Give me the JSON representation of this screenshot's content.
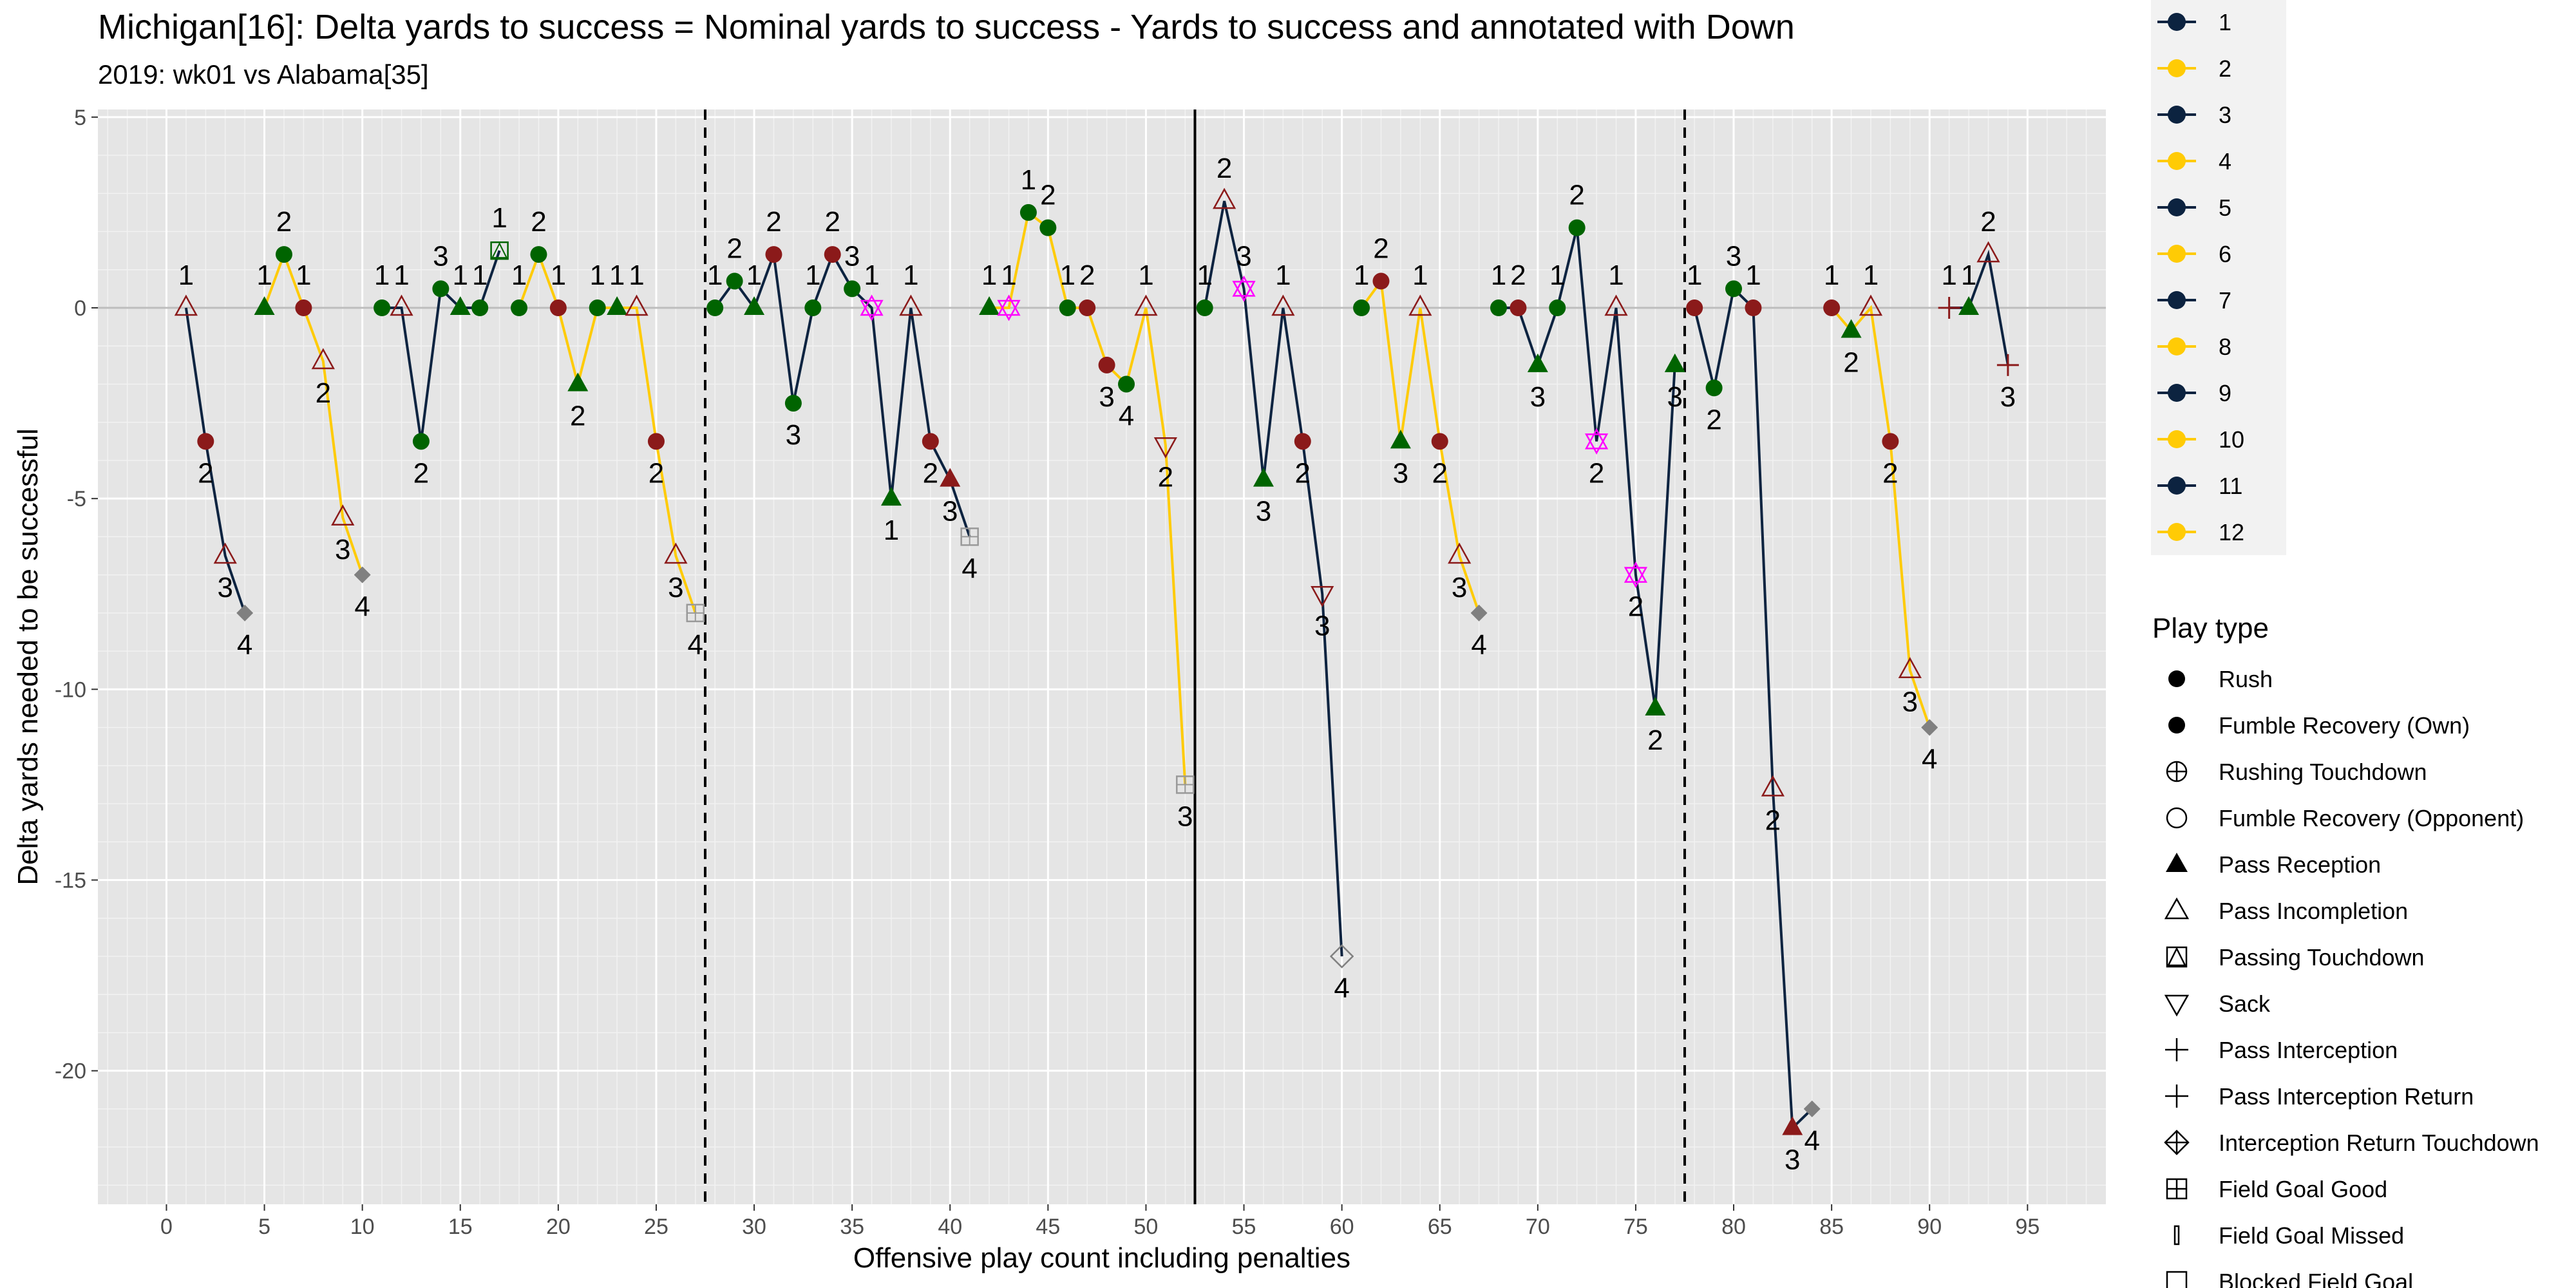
{
  "chart_data": {
    "type": "line",
    "title": "Michigan[16]: Delta yards to success = Nominal yards to success - Yards to success and annotated with Down",
    "subtitle": "2019: wk01 vs Alabama[35]",
    "xlabel": "Offensive play count including penalties",
    "ylabel": "Delta yards needed to be successful",
    "xlim": [
      -3.5,
      99
    ],
    "ylim": [
      -23.5,
      5.2
    ],
    "xticks": [
      0,
      5,
      10,
      15,
      20,
      25,
      30,
      35,
      40,
      45,
      50,
      55,
      60,
      65,
      70,
      75,
      80,
      85,
      90,
      95
    ],
    "yticks": [
      5,
      0,
      -5,
      -10,
      -15,
      -20
    ],
    "vlines_dashed": [
      27.5,
      77.5
    ],
    "vlines_solid": [
      52.5
    ],
    "grid": true,
    "colors": {
      "drive_odd": "#0c2340",
      "drive_even": "#ffcb05",
      "rush": "#006400",
      "fumble_own": "#8b1a1a",
      "pass": "#8b1a1a",
      "sack": "#8b1a1a",
      "penalty": "#ff00ff",
      "turnover": "#808080"
    },
    "legend_drive_title": "",
    "legend_drive": [
      "1",
      "2",
      "3",
      "4",
      "5",
      "6",
      "7",
      "8",
      "9",
      "10",
      "11",
      "12"
    ],
    "legend_playtype_title": "Play type",
    "legend_playtype": [
      "Rush",
      "Fumble Recovery (Own)",
      "Rushing Touchdown",
      "Fumble Recovery (Opponent)",
      "Pass Reception",
      "Pass Incompletion",
      "Passing Touchdown",
      "Sack",
      "Pass Interception",
      "Pass Interception Return",
      "Interception Return Touchdown",
      "Field Goal Good",
      "Field Goal Missed",
      "Blocked Field Goal"
    ],
    "drives": [
      {
        "drive": 1,
        "points": [
          {
            "x": 1,
            "y": 0,
            "down": "1",
            "shape": "tri_open",
            "color": "#8b1a1a",
            "label": "above"
          },
          {
            "x": 2,
            "y": -3.5,
            "down": "2",
            "shape": "circle",
            "color": "#8b1a1a",
            "label": "below"
          },
          {
            "x": 3,
            "y": -6.5,
            "down": "3",
            "shape": "tri_open",
            "color": "#8b1a1a",
            "label": "below"
          },
          {
            "x": 4,
            "y": -8,
            "down": "4",
            "shape": "diamond",
            "color": "#808080",
            "label": "below"
          }
        ]
      },
      {
        "drive": 2,
        "points": [
          {
            "x": 5,
            "y": 0,
            "down": "1",
            "shape": "tri",
            "color": "#006400",
            "label": "above"
          },
          {
            "x": 6,
            "y": 1.4,
            "down": "2",
            "shape": "circle",
            "color": "#006400",
            "label": "above"
          },
          {
            "x": 7,
            "y": 0,
            "down": "1",
            "shape": "circle",
            "color": "#8b1a1a",
            "label": "above"
          },
          {
            "x": 8,
            "y": -1.4,
            "down": "2",
            "shape": "tri_open",
            "color": "#8b1a1a",
            "label": "below"
          },
          {
            "x": 9,
            "y": -5.5,
            "down": "3",
            "shape": "tri_open",
            "color": "#8b1a1a",
            "label": "below"
          },
          {
            "x": 10,
            "y": -7,
            "down": "4",
            "shape": "diamond",
            "color": "#808080",
            "label": "below"
          }
        ]
      },
      {
        "drive": 3,
        "points": [
          {
            "x": 11,
            "y": 0,
            "down": "1",
            "shape": "circle",
            "color": "#006400",
            "label": "above"
          },
          {
            "x": 12,
            "y": 0,
            "down": "1",
            "shape": "tri_open",
            "color": "#8b1a1a",
            "label": "above"
          },
          {
            "x": 13,
            "y": -3.5,
            "down": "2",
            "shape": "circle",
            "color": "#006400",
            "label": "below"
          },
          {
            "x": 14,
            "y": 0.5,
            "down": "3",
            "shape": "circle",
            "color": "#006400",
            "label": "above"
          },
          {
            "x": 15,
            "y": 0,
            "down": "1",
            "shape": "tri",
            "color": "#006400",
            "label": "above"
          },
          {
            "x": 16,
            "y": 0,
            "down": "1",
            "shape": "circle",
            "color": "#006400",
            "label": "above"
          },
          {
            "x": 17,
            "y": 1.5,
            "down": "1",
            "shape": "sq_open",
            "color": "#006400",
            "label": "above"
          }
        ]
      },
      {
        "drive": 4,
        "points": [
          {
            "x": 18,
            "y": 0,
            "down": "1",
            "shape": "circle",
            "color": "#006400",
            "label": "above"
          },
          {
            "x": 19,
            "y": 1.4,
            "down": "2",
            "shape": "circle",
            "color": "#006400",
            "label": "above"
          },
          {
            "x": 20,
            "y": 0,
            "down": "1",
            "shape": "circle",
            "color": "#8b1a1a",
            "label": "above"
          },
          {
            "x": 21,
            "y": -2,
            "down": "2",
            "shape": "tri",
            "color": "#006400",
            "label": "below"
          },
          {
            "x": 22,
            "y": 0,
            "down": "1",
            "shape": "circle",
            "color": "#006400",
            "label": "above"
          },
          {
            "x": 23,
            "y": 0,
            "down": "1",
            "shape": "tri",
            "color": "#006400",
            "label": "above"
          },
          {
            "x": 24,
            "y": 0,
            "down": "1",
            "shape": "tri_open",
            "color": "#8b1a1a",
            "label": "above"
          },
          {
            "x": 25,
            "y": -3.5,
            "down": "2",
            "shape": "circle",
            "color": "#8b1a1a",
            "label": "below"
          },
          {
            "x": 26,
            "y": -6.5,
            "down": "3",
            "shape": "tri_open",
            "color": "#8b1a1a",
            "label": "below"
          },
          {
            "x": 27,
            "y": -8,
            "down": "4",
            "shape": "fg",
            "color": "#999999",
            "label": "below"
          }
        ]
      },
      {
        "drive": 5,
        "points": [
          {
            "x": 28,
            "y": 0,
            "down": "1",
            "shape": "circle",
            "color": "#006400",
            "label": "above"
          },
          {
            "x": 29,
            "y": 0.7,
            "down": "2",
            "shape": "circle",
            "color": "#006400",
            "label": "above"
          },
          {
            "x": 30,
            "y": 0,
            "down": "1",
            "shape": "tri",
            "color": "#006400",
            "label": "above"
          },
          {
            "x": 31,
            "y": 1.4,
            "down": "2",
            "shape": "circle",
            "color": "#8b1a1a",
            "label": "above"
          },
          {
            "x": 32,
            "y": -2.5,
            "down": "3",
            "shape": "circle",
            "color": "#006400",
            "label": "below"
          },
          {
            "x": 33,
            "y": 0,
            "down": "1",
            "shape": "circle",
            "color": "#006400",
            "label": "above"
          },
          {
            "x": 34,
            "y": 1.4,
            "down": "2",
            "shape": "circle",
            "color": "#8b1a1a",
            "label": "above"
          },
          {
            "x": 35,
            "y": 0.5,
            "down": "3",
            "shape": "circle",
            "color": "#006400",
            "label": "above"
          },
          {
            "x": 36,
            "y": 0,
            "down": "1",
            "shape": "star",
            "color": "#ff00ff",
            "label": "above"
          },
          {
            "x": 37,
            "y": -5,
            "down": "1",
            "shape": "tri",
            "color": "#006400",
            "label": "below"
          },
          {
            "x": 38,
            "y": 0,
            "down": "1",
            "shape": "tri_open",
            "color": "#8b1a1a",
            "label": "above"
          },
          {
            "x": 39,
            "y": -3.5,
            "down": "2",
            "shape": "circle",
            "color": "#8b1a1a",
            "label": "below"
          },
          {
            "x": 40,
            "y": -4.5,
            "down": "3",
            "shape": "tri",
            "color": "#8b1a1a",
            "label": "below"
          },
          {
            "x": 41,
            "y": -6,
            "down": "4",
            "shape": "fg",
            "color": "#999999",
            "label": "below"
          }
        ]
      },
      {
        "drive": 6,
        "points": [
          {
            "x": 42,
            "y": 0,
            "down": "1",
            "shape": "tri",
            "color": "#006400",
            "label": "above"
          },
          {
            "x": 43,
            "y": 0,
            "down": "1",
            "shape": "star",
            "color": "#ff00ff",
            "label": "above"
          },
          {
            "x": 44,
            "y": 2.5,
            "down": "1",
            "shape": "circle",
            "color": "#006400",
            "label": "above"
          },
          {
            "x": 45,
            "y": 2.1,
            "down": "2",
            "shape": "circle",
            "color": "#006400",
            "label": "above"
          },
          {
            "x": 46,
            "y": 0,
            "down": "1",
            "shape": "circle",
            "color": "#006400",
            "label": "above"
          },
          {
            "x": 47,
            "y": 0,
            "down": "2",
            "shape": "circle",
            "color": "#8b1a1a",
            "label": "above"
          },
          {
            "x": 48,
            "y": -1.5,
            "down": "3",
            "shape": "circle",
            "color": "#8b1a1a",
            "label": "below"
          },
          {
            "x": 49,
            "y": -2,
            "down": "4",
            "shape": "circle",
            "color": "#006400",
            "label": "below"
          },
          {
            "x": 50,
            "y": 0,
            "down": "1",
            "shape": "tri_open",
            "color": "#8b1a1a",
            "label": "above"
          },
          {
            "x": 51,
            "y": -3.6,
            "down": "2",
            "shape": "tri_down_open",
            "color": "#8b1a1a",
            "label": "below"
          },
          {
            "x": 52,
            "y": -12.5,
            "down": "3",
            "shape": "fg",
            "color": "#999999",
            "label": "below"
          }
        ]
      },
      {
        "drive": 7,
        "points": [
          {
            "x": 53,
            "y": 0,
            "down": "1",
            "shape": "circle",
            "color": "#006400",
            "label": "above"
          },
          {
            "x": 54,
            "y": 2.8,
            "down": "2",
            "shape": "tri_open",
            "color": "#8b1a1a",
            "label": "above"
          },
          {
            "x": 55,
            "y": 0.5,
            "down": "3",
            "shape": "star",
            "color": "#ff00ff",
            "label": "above"
          },
          {
            "x": 56,
            "y": -4.5,
            "down": "3",
            "shape": "tri",
            "color": "#006400",
            "label": "below"
          },
          {
            "x": 57,
            "y": 0,
            "down": "1",
            "shape": "tri_open",
            "color": "#8b1a1a",
            "label": "above"
          },
          {
            "x": 58,
            "y": -3.5,
            "down": "2",
            "shape": "circle",
            "color": "#8b1a1a",
            "label": "below"
          },
          {
            "x": 59,
            "y": -7.5,
            "down": "3",
            "shape": "tri_down_open",
            "color": "#8b1a1a",
            "label": "below"
          },
          {
            "x": 60,
            "y": -17,
            "down": "4",
            "shape": "diamond_open",
            "color": "#808080",
            "label": "below"
          }
        ]
      },
      {
        "drive": 8,
        "points": [
          {
            "x": 61,
            "y": 0,
            "down": "1",
            "shape": "circle",
            "color": "#006400",
            "label": "above"
          },
          {
            "x": 62,
            "y": 0.7,
            "down": "2",
            "shape": "circle",
            "color": "#8b1a1a",
            "label": "above"
          },
          {
            "x": 63,
            "y": -3.5,
            "down": "3",
            "shape": "tri",
            "color": "#006400",
            "label": "below"
          },
          {
            "x": 64,
            "y": 0,
            "down": "1",
            "shape": "tri_open",
            "color": "#8b1a1a",
            "label": "above"
          },
          {
            "x": 65,
            "y": -3.5,
            "down": "2",
            "shape": "circle",
            "color": "#8b1a1a",
            "label": "below"
          },
          {
            "x": 66,
            "y": -6.5,
            "down": "3",
            "shape": "tri_open",
            "color": "#8b1a1a",
            "label": "below"
          },
          {
            "x": 67,
            "y": -8,
            "down": "4",
            "shape": "diamond",
            "color": "#808080",
            "label": "below"
          }
        ]
      },
      {
        "drive": 9,
        "points": [
          {
            "x": 68,
            "y": 0,
            "down": "1",
            "shape": "circle",
            "color": "#006400",
            "label": "above"
          },
          {
            "x": 69,
            "y": 0,
            "down": "2",
            "shape": "circle",
            "color": "#8b1a1a",
            "label": "above"
          },
          {
            "x": 70,
            "y": -1.5,
            "down": "3",
            "shape": "tri",
            "color": "#006400",
            "label": "below"
          },
          {
            "x": 71,
            "y": 0,
            "down": "1",
            "shape": "circle",
            "color": "#006400",
            "label": "above"
          },
          {
            "x": 72,
            "y": 2.1,
            "down": "2",
            "shape": "circle",
            "color": "#006400",
            "label": "above"
          },
          {
            "x": 73,
            "y": -3.5,
            "down": "2",
            "shape": "star",
            "color": "#ff00ff",
            "label": "below"
          },
          {
            "x": 74,
            "y": 0,
            "down": "1",
            "shape": "tri_open",
            "color": "#8b1a1a",
            "label": "above"
          },
          {
            "x": 75,
            "y": -7,
            "down": "2",
            "shape": "star",
            "color": "#ff00ff",
            "label": "below"
          },
          {
            "x": 76,
            "y": -10.5,
            "down": "2",
            "shape": "tri",
            "color": "#006400",
            "label": "below"
          },
          {
            "x": 77,
            "y": -1.5,
            "down": "3",
            "shape": "tri",
            "color": "#006400",
            "label": "below"
          }
        ]
      },
      {
        "drive": 11,
        "points": [
          {
            "x": 78,
            "y": 0,
            "down": "1",
            "shape": "circle",
            "color": "#8b1a1a",
            "label": "above"
          },
          {
            "x": 79,
            "y": -2.1,
            "down": "2",
            "shape": "circle",
            "color": "#006400",
            "label": "below"
          },
          {
            "x": 80,
            "y": 0.5,
            "down": "3",
            "shape": "circle",
            "color": "#006400",
            "label": "above"
          },
          {
            "x": 81,
            "y": 0,
            "down": "1",
            "shape": "circle",
            "color": "#8b1a1a",
            "label": "above"
          },
          {
            "x": 82,
            "y": -12.6,
            "down": "2",
            "shape": "tri_open",
            "color": "#8b1a1a",
            "label": "below"
          },
          {
            "x": 83,
            "y": -21.5,
            "down": "3",
            "shape": "tri",
            "color": "#8b1a1a",
            "label": "below"
          },
          {
            "x": 84,
            "y": -21,
            "down": "4",
            "shape": "diamond",
            "color": "#808080",
            "label": "below"
          }
        ]
      },
      {
        "drive": 12,
        "points": [
          {
            "x": 85,
            "y": 0,
            "down": "1",
            "shape": "circle",
            "color": "#8b1a1a",
            "label": "above"
          },
          {
            "x": 86,
            "y": -0.6,
            "down": "2",
            "shape": "tri",
            "color": "#006400",
            "label": "below"
          },
          {
            "x": 87,
            "y": 0,
            "down": "1",
            "shape": "tri_open",
            "color": "#8b1a1a",
            "label": "above"
          },
          {
            "x": 88,
            "y": -3.5,
            "down": "2",
            "shape": "circle",
            "color": "#8b1a1a",
            "label": "below"
          },
          {
            "x": 89,
            "y": -9.5,
            "down": "3",
            "shape": "tri_open",
            "color": "#8b1a1a",
            "label": "below"
          },
          {
            "x": 90,
            "y": -11,
            "down": "4",
            "shape": "diamond",
            "color": "#808080",
            "label": "below"
          }
        ]
      },
      {
        "drive": 13,
        "points": [
          {
            "x": 91,
            "y": 0,
            "down": "1",
            "shape": "plus",
            "color": "#8b1a1a",
            "label": "above"
          },
          {
            "x": 92,
            "y": 0,
            "down": "1",
            "shape": "tri",
            "color": "#006400",
            "label": "above"
          },
          {
            "x": 93,
            "y": 1.4,
            "down": "2",
            "shape": "tri_open",
            "color": "#8b1a1a",
            "label": "above"
          },
          {
            "x": 94,
            "y": -1.5,
            "down": "3",
            "shape": "plus",
            "color": "#8b1a1a",
            "label": "below"
          }
        ]
      }
    ]
  }
}
